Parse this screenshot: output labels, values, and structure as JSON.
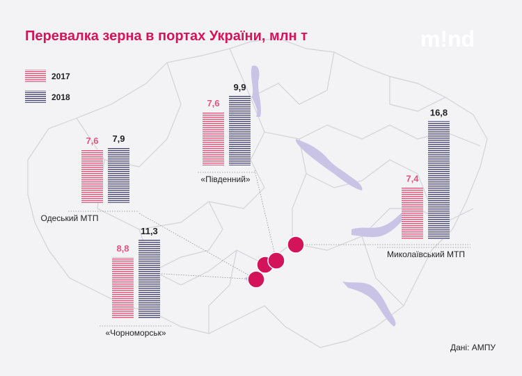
{
  "title": "Перевалка зерна в портах України, млн т",
  "logo": "m!nd",
  "source": "Дані: АМПУ",
  "colors": {
    "series_2017": "#e0557a",
    "series_2018": "#4b4a7a",
    "marker": "#d4145a",
    "title": "#d4145a",
    "water": "#c9c4e6",
    "border": "#cfcfd6"
  },
  "chart_data": {
    "type": "bar",
    "title": "Перевалка зерна в портах України, млн т",
    "legend": {
      "placement": "top-left"
    },
    "series": [
      {
        "name": "2017",
        "values": [
          7.6,
          7.6,
          8.8,
          7.4
        ]
      },
      {
        "name": "2018",
        "values": [
          7.9,
          9.9,
          11.3,
          16.8
        ]
      }
    ],
    "categories": [
      "Одеський МТП",
      "«Південний»",
      "«Чорноморськ»",
      "Миколаївський МТП"
    ],
    "value_labels": {
      "2017": [
        "7,6",
        "7,6",
        "8,8",
        "7,4"
      ],
      "2018": [
        "7,9",
        "9,9",
        "11,3",
        "16,8"
      ]
    }
  }
}
